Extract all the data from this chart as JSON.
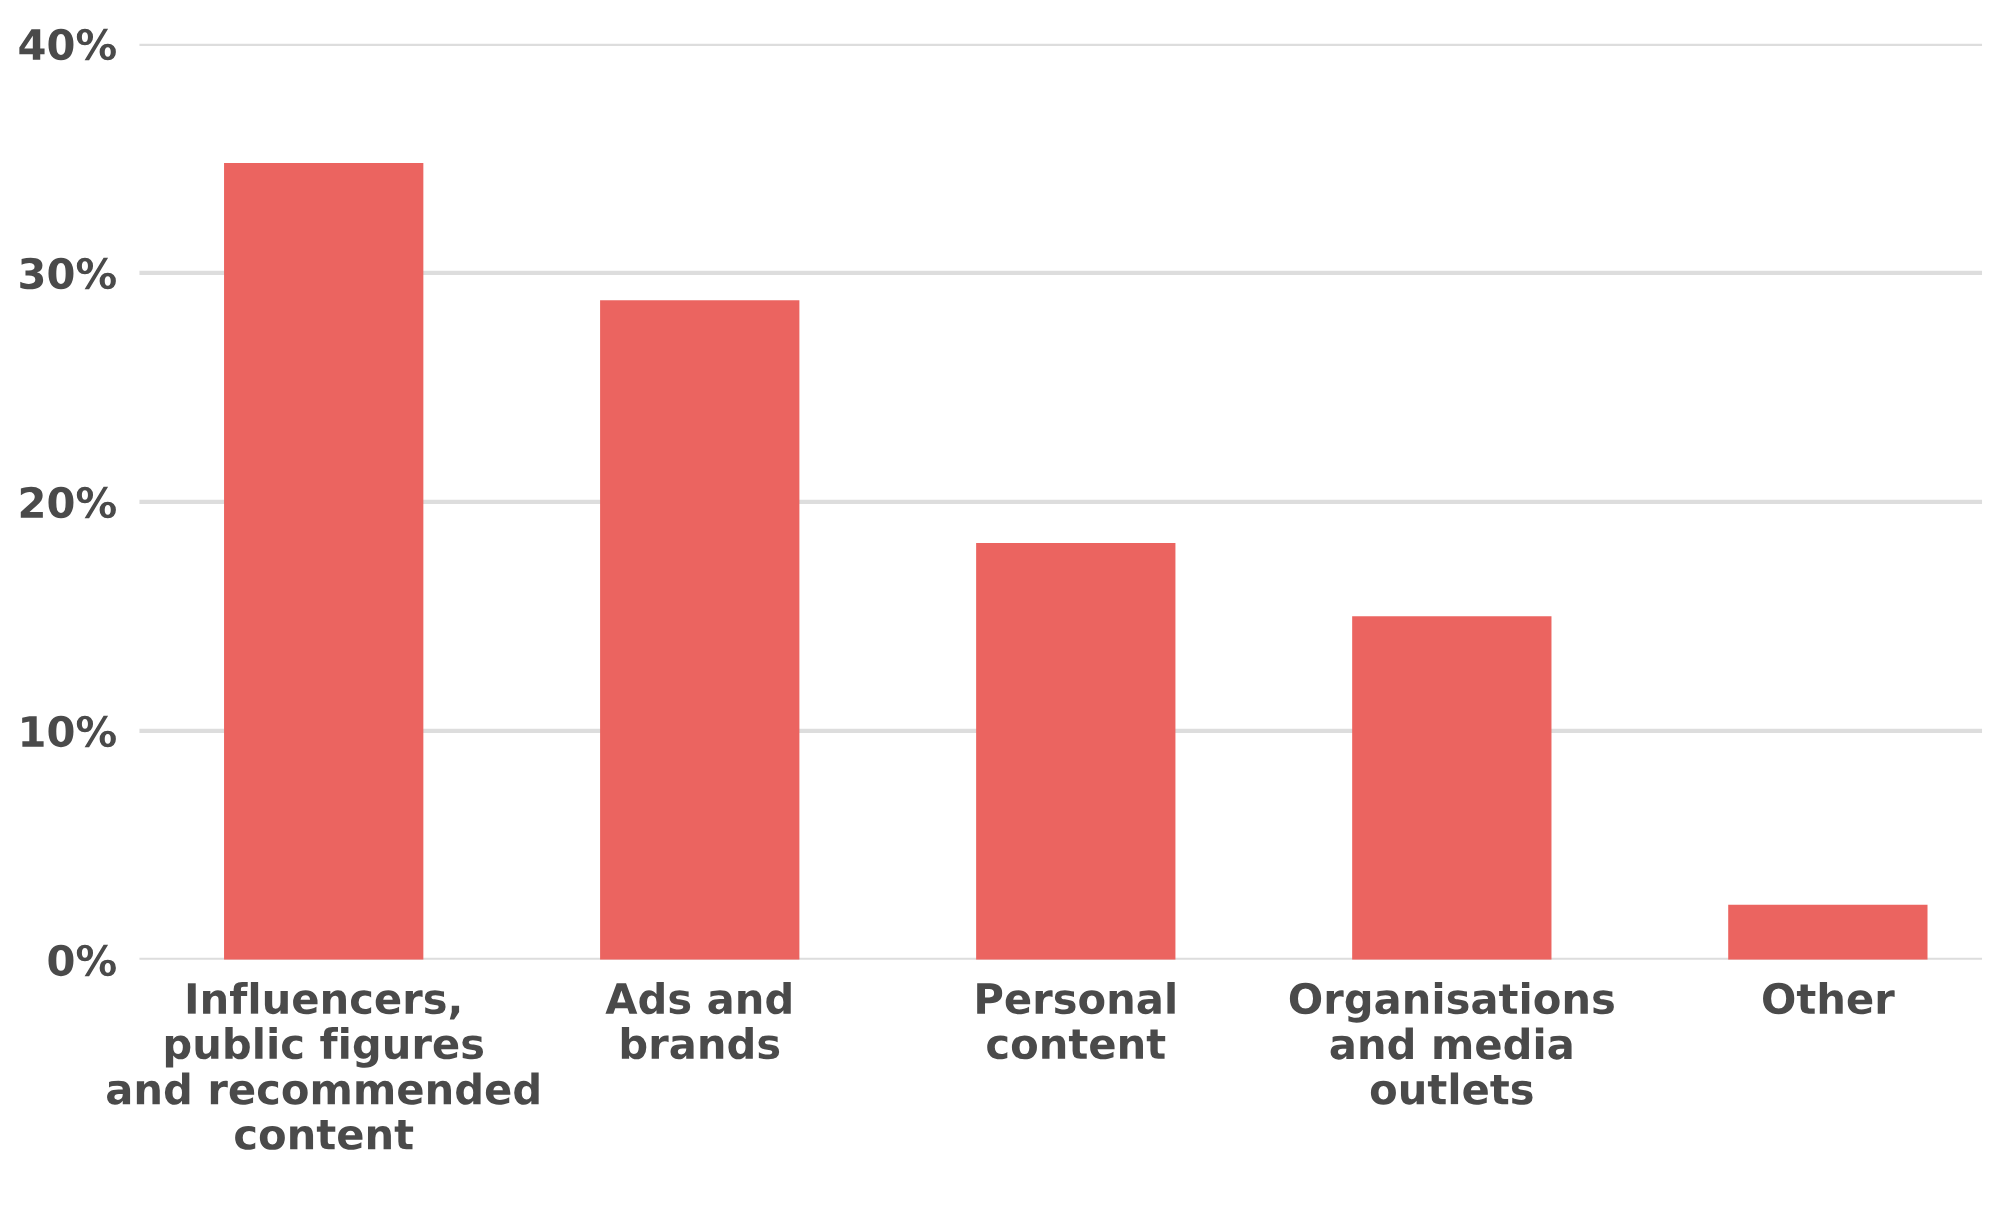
{
  "chart_data": {
    "type": "bar",
    "categories": [
      "Influencers,\npublic figures\nand recommended\ncontent",
      "Ads and\nbrands",
      "Personal\ncontent",
      "Organisations\nand media\noutlets",
      "Other"
    ],
    "values": [
      34.8,
      28.8,
      18.2,
      15.0,
      2.4
    ],
    "color": "#eb6460",
    "ylim": [
      0,
      40
    ],
    "yticks": [
      {
        "value": 0,
        "label": "0%"
      },
      {
        "value": 10,
        "label": "10%"
      },
      {
        "value": 20,
        "label": "20%"
      },
      {
        "value": 30,
        "label": "30%"
      },
      {
        "value": 40,
        "label": "40%"
      }
    ],
    "grid": "y"
  }
}
